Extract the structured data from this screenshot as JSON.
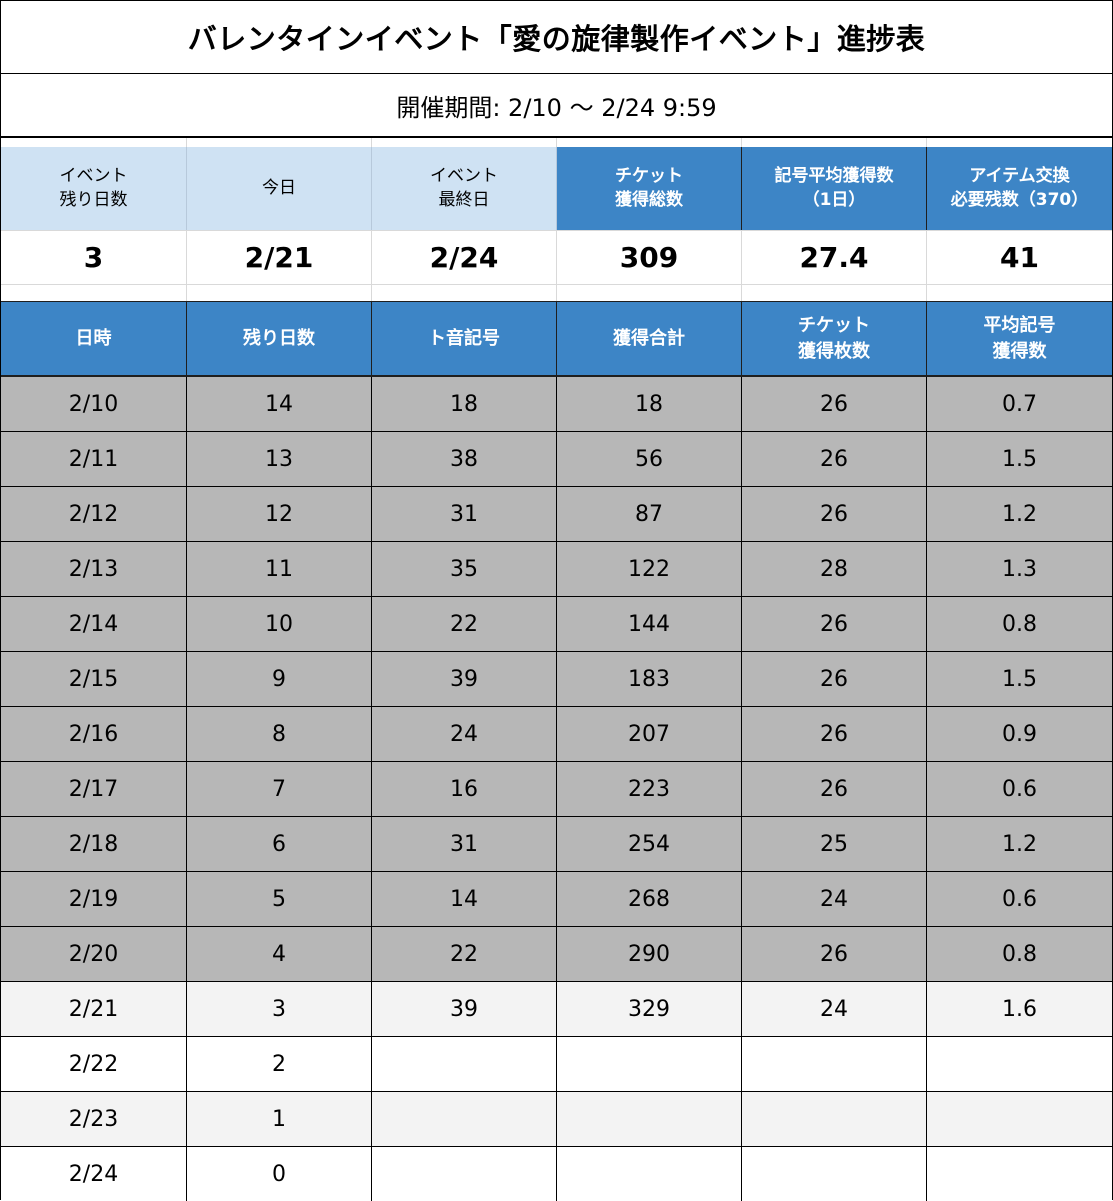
{
  "title": "バレンタインイベント「愛の旋律製作イベント」進捗表",
  "period": "開催期間: 2/10 〜 2/24 9:59",
  "summary": {
    "headers": [
      "イベント\n残り日数",
      "今日",
      "イベント\n最終日",
      "チケット\n獲得総数",
      "記号平均獲得数\n（1日）",
      "アイテム交換\n必要残数（370）"
    ],
    "values": [
      "3",
      "2/21",
      "2/24",
      "309",
      "27.4",
      "41"
    ],
    "colors": {
      "light_header": "#cfe2f3",
      "dark_header": "#3d85c6"
    }
  },
  "table": {
    "headers": [
      "日時",
      "残り日数",
      "ト音記号",
      "獲得合計",
      "チケット\n獲得枚数",
      "平均記号\n獲得数"
    ],
    "rows": [
      [
        "2/10",
        "14",
        "18",
        "18",
        "26",
        "0.7"
      ],
      [
        "2/11",
        "13",
        "38",
        "56",
        "26",
        "1.5"
      ],
      [
        "2/12",
        "12",
        "31",
        "87",
        "26",
        "1.2"
      ],
      [
        "2/13",
        "11",
        "35",
        "122",
        "28",
        "1.3"
      ],
      [
        "2/14",
        "10",
        "22",
        "144",
        "26",
        "0.8"
      ],
      [
        "2/15",
        "9",
        "39",
        "183",
        "26",
        "1.5"
      ],
      [
        "2/16",
        "8",
        "24",
        "207",
        "26",
        "0.9"
      ],
      [
        "2/17",
        "7",
        "16",
        "223",
        "26",
        "0.6"
      ],
      [
        "2/18",
        "6",
        "31",
        "254",
        "25",
        "1.2"
      ],
      [
        "2/19",
        "5",
        "14",
        "268",
        "24",
        "0.6"
      ],
      [
        "2/20",
        "4",
        "22",
        "290",
        "26",
        "0.8"
      ],
      [
        "2/21",
        "3",
        "39",
        "329",
        "24",
        "1.6"
      ],
      [
        "2/22",
        "2",
        "",
        "",
        "",
        ""
      ],
      [
        "2/23",
        "1",
        "",
        "",
        "",
        ""
      ],
      [
        "2/24",
        "0",
        "",
        "",
        "",
        ""
      ]
    ],
    "colors": {
      "past_row": "#b7b7b7",
      "current_row": "#f3f3f3",
      "header": "#3d85c6"
    }
  }
}
